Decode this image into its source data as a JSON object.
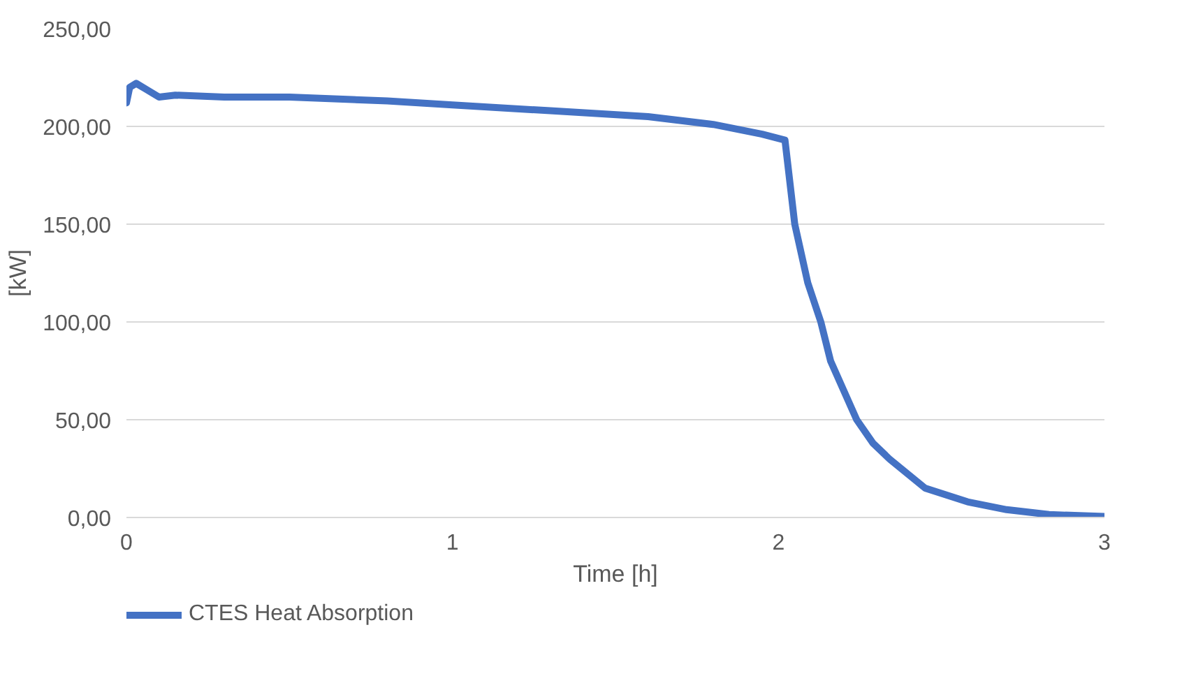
{
  "chart_data": {
    "type": "line",
    "xlabel": "Time [h]",
    "ylabel": "[kW]",
    "xlim": [
      0,
      3
    ],
    "xticks": [
      0,
      1,
      2,
      3
    ],
    "ylim": [
      0,
      250
    ],
    "yticks": [
      {
        "value": 0,
        "label": "0,00"
      },
      {
        "value": 50,
        "label": "50,00"
      },
      {
        "value": 100,
        "label": "100,00"
      },
      {
        "value": 150,
        "label": "150,00"
      },
      {
        "value": 200,
        "label": "200,00"
      },
      {
        "value": 250,
        "label": "250,00"
      }
    ],
    "grid": "y",
    "legend": "bottom left",
    "line_style": "solid",
    "marker": "none",
    "series": [
      {
        "name": "CTES Heat Absorption",
        "color": "#4472c4",
        "x": [
          0,
          0.01,
          0.03,
          0.06,
          0.1,
          0.15,
          0.3,
          0.5,
          0.8,
          1.0,
          1.3,
          1.6,
          1.8,
          1.95,
          2.02,
          2.05,
          2.09,
          2.13,
          2.16,
          2.2,
          2.24,
          2.29,
          2.34,
          2.45,
          2.58,
          2.7,
          2.83,
          3.0
        ],
        "values": [
          212,
          220,
          222,
          219,
          215,
          216,
          215,
          215,
          213,
          211,
          208,
          205,
          201,
          196,
          193,
          150,
          120,
          100,
          80,
          65,
          50,
          38,
          30,
          15,
          8,
          4,
          1.5,
          0.5
        ]
      }
    ]
  }
}
